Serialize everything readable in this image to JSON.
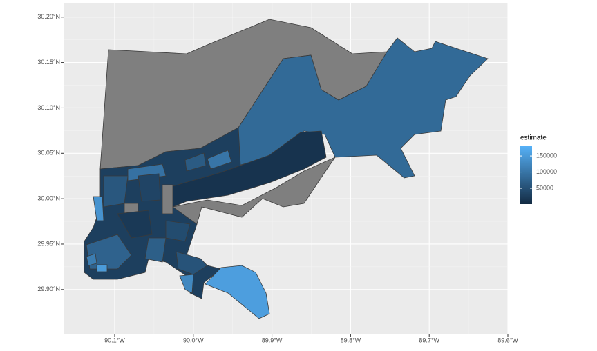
{
  "chart_data": {
    "type": "choropleth",
    "legend_title": "estimate",
    "xlim": [
      -90.165,
      -89.6
    ],
    "ylim": [
      29.8505,
      30.215
    ],
    "xticks": [
      {
        "value": -90.1,
        "label": "90.1°W"
      },
      {
        "value": -90.0,
        "label": "90.0°W"
      },
      {
        "value": -89.9,
        "label": "89.9°W"
      },
      {
        "value": -89.8,
        "label": "89.8°W"
      },
      {
        "value": -89.7,
        "label": "89.7°W"
      },
      {
        "value": -89.6,
        "label": "89.6°W"
      }
    ],
    "yticks": [
      {
        "value": 29.9,
        "label": "29.90°N"
      },
      {
        "value": 29.95,
        "label": "29.95°N"
      },
      {
        "value": 30.0,
        "label": "30.00°N"
      },
      {
        "value": 30.05,
        "label": "30.05°N"
      },
      {
        "value": 30.1,
        "label": "30.10°N"
      },
      {
        "value": 30.15,
        "label": "30.15°N"
      },
      {
        "value": 30.2,
        "label": "30.20°N"
      }
    ],
    "colorlim": [
      1000,
      180000
    ],
    "legend_ticks": [
      50000,
      100000,
      150000
    ],
    "low_color": "#132B43",
    "high_color": "#56B1F7",
    "na_color": "#7f7f7f",
    "grid": true,
    "values": [
      null,
      null,
      85000,
      12000,
      28000,
      155000,
      125000,
      95000,
      140000,
      60000,
      null,
      null,
      75000,
      150000,
      70000,
      45000,
      20000,
      100000,
      55000,
      35000,
      110000,
      65000
    ]
  }
}
